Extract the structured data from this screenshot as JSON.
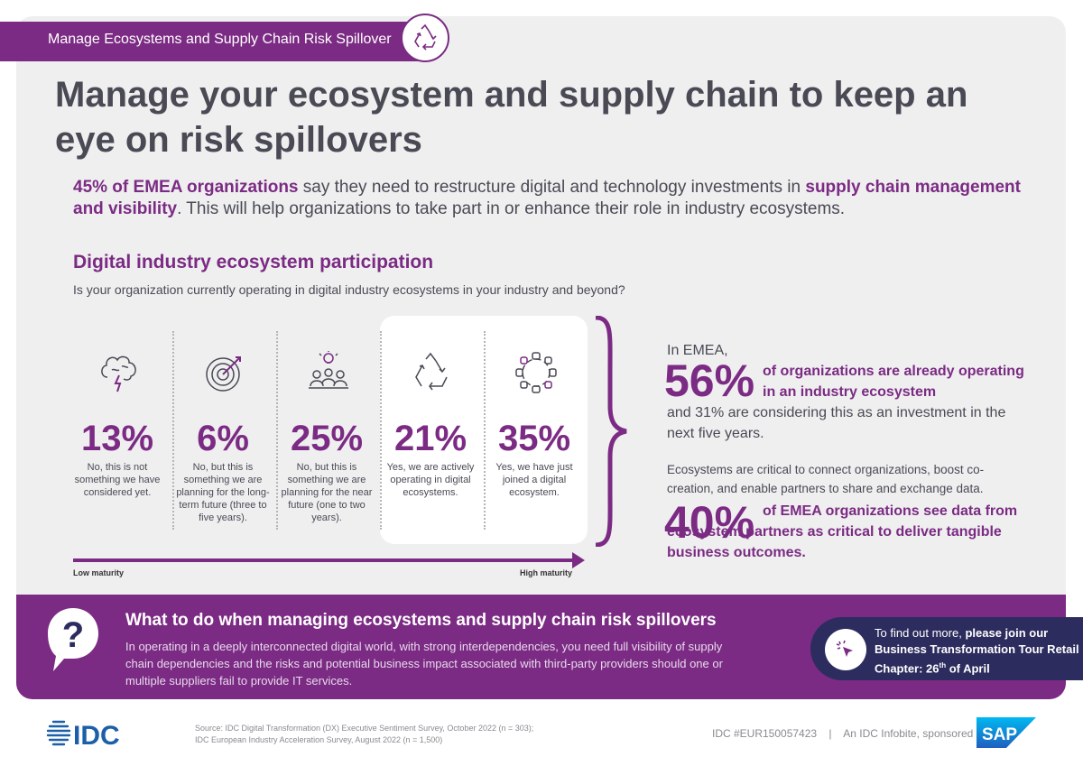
{
  "header": {
    "tag": "Manage Ecosystems and Supply Chain Risk Spillover"
  },
  "title": "Manage your ecosystem and supply chain to keep an eye on risk spillovers",
  "intro": {
    "bold1": "45% of EMEA organizations",
    "text1": " say they need to restructure digital and technology investments in ",
    "bold2": "supply chain management and visibility",
    "text2": ". This will help organizations to take part in or enhance their role in industry ecosystems."
  },
  "section": {
    "title": "Digital industry ecosystem participation",
    "question": "Is your organization currently operating in digital industry ecosystems in your industry and beyond?"
  },
  "columns": [
    {
      "icon": "brain-lightning-icon",
      "value": "13%",
      "desc": "No, this is not something we have considered yet."
    },
    {
      "icon": "target-icon",
      "value": "6%",
      "desc": "No, but this is something we are planning for the long-term future (three to five years)."
    },
    {
      "icon": "meeting-idea-icon",
      "value": "25%",
      "desc": "No, but this is something we are planning for the near future (one to two years)."
    },
    {
      "icon": "recycle-icon",
      "value": "21%",
      "desc": "Yes, we are actively operating in digital ecosystems."
    },
    {
      "icon": "linked-hands-icon",
      "value": "35%",
      "desc": "Yes, we have just joined a digital ecosystem."
    }
  ],
  "scale": {
    "low": "Low maturity",
    "high": "High maturity"
  },
  "right": {
    "lead": "In EMEA,",
    "stat1": "56%",
    "stat1_text": "of organizations are already operating in an industry ecosystem",
    "stat1_follow": "and 31% are considering this as an investment in the next five years.",
    "context": "Ecosystems are critical to connect organizations, boost co-creation, and enable partners to share and exchange data.",
    "stat2": "40%",
    "stat2_text": "of EMEA organizations see data from ecosystem partners as critical to deliver tangible business outcomes."
  },
  "bottom": {
    "title": "What to do when managing ecosystems and supply chain risk spillovers",
    "text": "In operating in a deeply interconnected digital world, with strong interdependencies, you need full visibility of supply chain dependencies and the risks and potential business impact associated with third-party providers should one or multiple suppliers fail to provide IT services.",
    "cta_lead": "To find out more, ",
    "cta_bold": "please join our Business Transformation Tour Retail Chapter: 26",
    "cta_sup": "th",
    "cta_end": " of April"
  },
  "footer": {
    "logo": "IDC",
    "source1": "Source: IDC Digital Transformation (DX) Executive Sentiment Survey, October 2022 (n = 303);",
    "source2": "IDC European Industry Acceleration Survey, August 2022 (n = 1,500)",
    "doc_id": "IDC #EUR150057423",
    "sep": "|",
    "sponsor": "An IDC Infobite, sponsored by",
    "sponsor_logo": "SAP"
  },
  "colors": {
    "purple": "#7b2b83",
    "navy": "#2c2c5e",
    "text": "#4a4a55",
    "panel": "#efeff0"
  }
}
